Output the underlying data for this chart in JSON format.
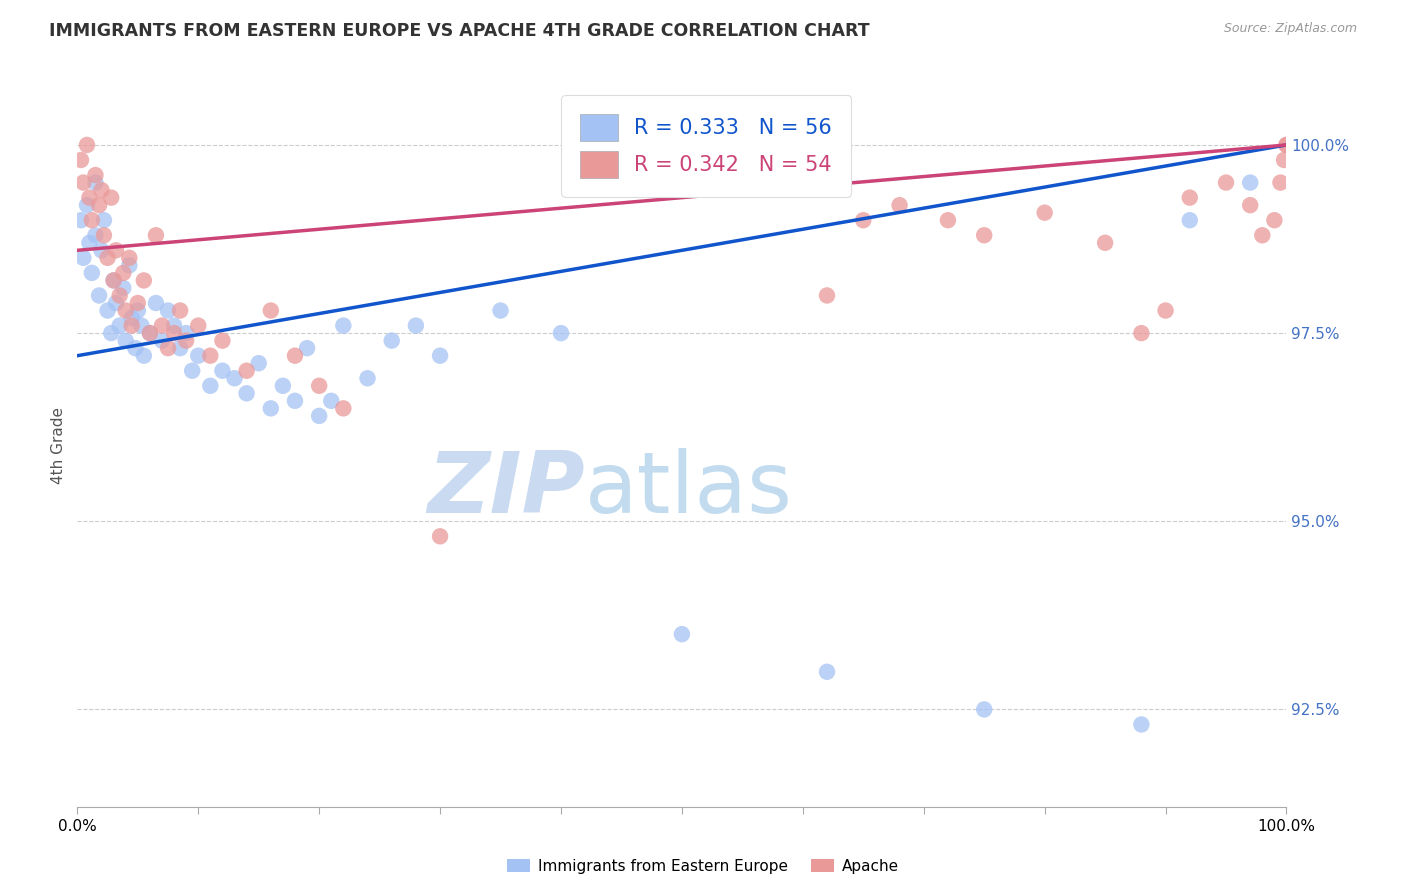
{
  "title": "IMMIGRANTS FROM EASTERN EUROPE VS APACHE 4TH GRADE CORRELATION CHART",
  "source": "Source: ZipAtlas.com",
  "ylabel": "4th Grade",
  "ymin": 91.2,
  "ymax": 100.8,
  "xmin": 0.0,
  "xmax": 100.0,
  "r_blue": 0.333,
  "n_blue": 56,
  "r_pink": 0.342,
  "n_pink": 54,
  "blue_color": "#a4c2f4",
  "pink_color": "#ea9999",
  "line_blue": "#1155cc",
  "line_pink": "#cc4477",
  "watermark_zip": "ZIP",
  "watermark_atlas": "atlas",
  "blue_line_start_y": 97.2,
  "blue_line_end_y": 100.0,
  "pink_line_start_y": 98.6,
  "pink_line_end_y": 100.0,
  "blue_scatter_x": [
    0.3,
    0.5,
    0.8,
    1.0,
    1.2,
    1.5,
    1.5,
    1.8,
    2.0,
    2.2,
    2.5,
    2.8,
    3.0,
    3.2,
    3.5,
    3.8,
    4.0,
    4.3,
    4.5,
    4.8,
    5.0,
    5.3,
    5.5,
    6.0,
    6.5,
    7.0,
    7.5,
    8.0,
    8.5,
    9.0,
    9.5,
    10.0,
    11.0,
    12.0,
    13.0,
    14.0,
    15.0,
    16.0,
    17.0,
    18.0,
    19.0,
    20.0,
    21.0,
    22.0,
    24.0,
    26.0,
    28.0,
    30.0,
    35.0,
    40.0,
    50.0,
    62.0,
    75.0,
    88.0,
    92.0,
    97.0
  ],
  "blue_scatter_y": [
    99.0,
    98.5,
    99.2,
    98.7,
    98.3,
    98.8,
    99.5,
    98.0,
    98.6,
    99.0,
    97.8,
    97.5,
    98.2,
    97.9,
    97.6,
    98.1,
    97.4,
    98.4,
    97.7,
    97.3,
    97.8,
    97.6,
    97.2,
    97.5,
    97.9,
    97.4,
    97.8,
    97.6,
    97.3,
    97.5,
    97.0,
    97.2,
    96.8,
    97.0,
    96.9,
    96.7,
    97.1,
    96.5,
    96.8,
    96.6,
    97.3,
    96.4,
    96.6,
    97.6,
    96.9,
    97.4,
    97.6,
    97.2,
    97.8,
    97.5,
    93.5,
    93.0,
    92.5,
    92.3,
    99.0,
    99.5
  ],
  "pink_scatter_x": [
    0.3,
    0.5,
    0.8,
    1.0,
    1.2,
    1.5,
    1.8,
    2.0,
    2.2,
    2.5,
    2.8,
    3.0,
    3.2,
    3.5,
    3.8,
    4.0,
    4.3,
    4.5,
    5.0,
    5.5,
    6.0,
    6.5,
    7.0,
    7.5,
    8.0,
    8.5,
    9.0,
    10.0,
    11.0,
    12.0,
    14.0,
    16.0,
    18.0,
    20.0,
    22.0,
    30.0,
    62.0,
    65.0,
    68.0,
    72.0,
    75.0,
    80.0,
    85.0,
    88.0,
    90.0,
    92.0,
    95.0,
    97.0,
    98.0,
    99.0,
    99.5,
    99.8,
    100.0,
    100.0
  ],
  "pink_scatter_y": [
    99.8,
    99.5,
    100.0,
    99.3,
    99.0,
    99.6,
    99.2,
    99.4,
    98.8,
    98.5,
    99.3,
    98.2,
    98.6,
    98.0,
    98.3,
    97.8,
    98.5,
    97.6,
    97.9,
    98.2,
    97.5,
    98.8,
    97.6,
    97.3,
    97.5,
    97.8,
    97.4,
    97.6,
    97.2,
    97.4,
    97.0,
    97.8,
    97.2,
    96.8,
    96.5,
    94.8,
    98.0,
    99.0,
    99.2,
    99.0,
    98.8,
    99.1,
    98.7,
    97.5,
    97.8,
    99.3,
    99.5,
    99.2,
    98.8,
    99.0,
    99.5,
    99.8,
    100.0,
    100.0
  ]
}
